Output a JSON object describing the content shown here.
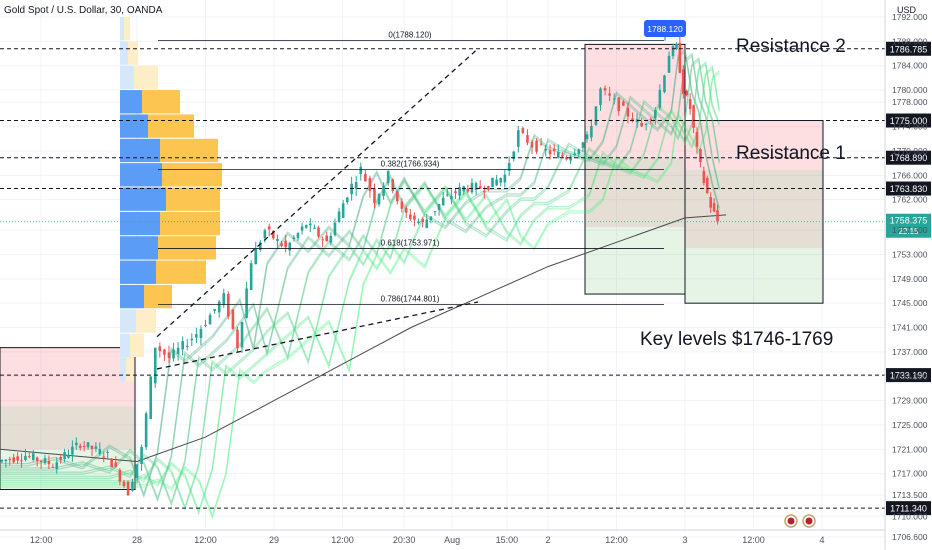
{
  "header": {
    "symbol": "Gold Spot / U.S. Dollar, 30, OANDA",
    "currency": "USD"
  },
  "annotations": {
    "resistance2": "Resistance 2",
    "resistance1": "Resistance 1",
    "key_levels": "Key levels $1746-1769"
  },
  "colors": {
    "up": "#26a69a",
    "down": "#ef5350",
    "label_bg": "#131722",
    "price_tag": "#2962ff",
    "vp_up": "#5b9cf6",
    "vp_down": "#fbc54f"
  },
  "chart_data": {
    "type": "candlestick",
    "instrument": "Gold Spot / U.S. Dollar",
    "timeframe": "30",
    "y_axis": {
      "range": [
        1705,
        1795
      ],
      "ticks": [
        1706.6,
        1710,
        1713.5,
        1717,
        1721,
        1725,
        1729,
        1733,
        1737,
        1741,
        1745,
        1749,
        1753,
        1757,
        1762,
        1766,
        1770,
        1774,
        1778,
        1780,
        1784,
        1788,
        1792
      ],
      "tick_labels": [
        "1706.600",
        "1710.000",
        "1713.500",
        "1717.000",
        "1721.000",
        "1725.000",
        "1729.000",
        "1733.000",
        "1737.000",
        "1741.000",
        "1745.000",
        "1749.000",
        "1753.000",
        "1757.000",
        "1762.000",
        "1766.000",
        "1770.000",
        "1774.000",
        "1778.000",
        "1780.000",
        "1784.000",
        "1788.000",
        "1792.000"
      ]
    },
    "x_axis": {
      "labels": [
        "12:00",
        "28",
        "12:00",
        "29",
        "12:00",
        "20:30",
        "Aug",
        "15:00",
        "2",
        "12:00",
        "3",
        "12:00",
        "4"
      ],
      "positions": [
        0.3,
        1.0,
        1.5,
        2.0,
        2.5,
        2.95,
        3.3,
        3.7,
        4.0,
        4.5,
        5.0,
        5.5,
        6.0
      ]
    },
    "price_series": [
      [
        0.0,
        1719
      ],
      [
        0.2,
        1720
      ],
      [
        0.4,
        1718.5
      ],
      [
        0.6,
        1722
      ],
      [
        0.8,
        1720
      ],
      [
        0.95,
        1714
      ],
      [
        1.05,
        1721
      ],
      [
        1.15,
        1738
      ],
      [
        1.25,
        1736
      ],
      [
        1.35,
        1738
      ],
      [
        1.45,
        1740
      ],
      [
        1.55,
        1743
      ],
      [
        1.65,
        1746
      ],
      [
        1.75,
        1738
      ],
      [
        1.85,
        1752
      ],
      [
        1.95,
        1757
      ],
      [
        2.1,
        1754
      ],
      [
        2.25,
        1758
      ],
      [
        2.4,
        1755
      ],
      [
        2.55,
        1763
      ],
      [
        2.65,
        1767
      ],
      [
        2.75,
        1762
      ],
      [
        2.85,
        1766
      ],
      [
        2.95,
        1760
      ],
      [
        3.1,
        1758
      ],
      [
        3.25,
        1762
      ],
      [
        3.4,
        1764
      ],
      [
        3.55,
        1764
      ],
      [
        3.7,
        1766
      ],
      [
        3.8,
        1773
      ],
      [
        3.9,
        1771
      ],
      [
        4.0,
        1770
      ],
      [
        4.15,
        1769
      ],
      [
        4.3,
        1772
      ],
      [
        4.4,
        1780
      ],
      [
        4.5,
        1778
      ],
      [
        4.6,
        1776
      ],
      [
        4.7,
        1774
      ],
      [
        4.8,
        1777
      ],
      [
        4.9,
        1786
      ],
      [
        4.95,
        1787
      ],
      [
        5.0,
        1780
      ],
      [
        5.05,
        1777
      ],
      [
        5.1,
        1770
      ],
      [
        5.15,
        1765
      ],
      [
        5.2,
        1761
      ],
      [
        5.25,
        1758.4
      ]
    ],
    "fib_levels": [
      {
        "label": "0(1788.120)",
        "value": 1788.12
      },
      {
        "label": "0.382(1766.934)",
        "value": 1766.934
      },
      {
        "label": "0.618(1753.971)",
        "value": 1753.971
      },
      {
        "label": "0.786(1744.801)",
        "value": 1744.801
      }
    ],
    "horizontal_levels": [
      {
        "label": "1786.785",
        "value": 1786.785
      },
      {
        "label": "1775.000",
        "value": 1775.0
      },
      {
        "label": "1768.890",
        "value": 1768.89
      },
      {
        "label": "1763.830",
        "value": 1763.83
      },
      {
        "label": "1733.190",
        "value": 1733.19
      },
      {
        "label": "1711.340",
        "value": 1711.34
      }
    ],
    "current_price": {
      "label": "1758.375",
      "value": 1758.375,
      "countdown": "22:15"
    },
    "high_marker": {
      "label": "1788.120",
      "value": 1788.12
    }
  }
}
